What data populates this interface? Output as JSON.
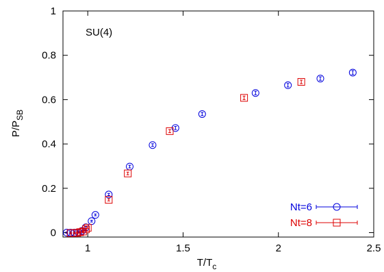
{
  "chart_data": {
    "type": "scatter",
    "title": "",
    "annotation": "SU(4)",
    "xlabel": {
      "main": "T/T",
      "sub": "c"
    },
    "ylabel": {
      "main": "P/P",
      "sub": "SB"
    },
    "xlim": [
      0.87,
      2.5
    ],
    "ylim": [
      -0.02,
      1.0
    ],
    "xticks": [
      1,
      1.5,
      2,
      2.5
    ],
    "xtick_labels": [
      "1",
      "1.5",
      "2",
      "2.5"
    ],
    "yticks": [
      0,
      0.2,
      0.4,
      0.6,
      0.8,
      1
    ],
    "ytick_labels": [
      "0",
      "0.2",
      "0.4",
      "0.6",
      "0.8",
      "1"
    ],
    "grid": false,
    "legend_position": "bottom-right",
    "series": [
      {
        "name": "Nt=6",
        "color": "#0000dd",
        "marker": "circle",
        "points": [
          {
            "x": 0.89,
            "y": 0.0,
            "err": 0.003
          },
          {
            "x": 0.91,
            "y": 0.0,
            "err": 0.003
          },
          {
            "x": 0.93,
            "y": 0.0,
            "err": 0.003
          },
          {
            "x": 0.95,
            "y": 0.002,
            "err": 0.003
          },
          {
            "x": 0.97,
            "y": 0.008,
            "err": 0.003
          },
          {
            "x": 0.99,
            "y": 0.024,
            "err": 0.004
          },
          {
            "x": 1.02,
            "y": 0.052,
            "err": 0.004
          },
          {
            "x": 1.04,
            "y": 0.08,
            "err": 0.004
          },
          {
            "x": 1.11,
            "y": 0.172,
            "err": 0.005
          },
          {
            "x": 1.22,
            "y": 0.298,
            "err": 0.006
          },
          {
            "x": 1.34,
            "y": 0.395,
            "err": 0.006
          },
          {
            "x": 1.46,
            "y": 0.472,
            "err": 0.007
          },
          {
            "x": 1.6,
            "y": 0.535,
            "err": 0.007
          },
          {
            "x": 1.88,
            "y": 0.63,
            "err": 0.008
          },
          {
            "x": 2.05,
            "y": 0.665,
            "err": 0.008
          },
          {
            "x": 2.22,
            "y": 0.695,
            "err": 0.008
          },
          {
            "x": 2.39,
            "y": 0.722,
            "err": 0.009
          }
        ]
      },
      {
        "name": "Nt=8",
        "color": "#dd0000",
        "marker": "square",
        "points": [
          {
            "x": 0.91,
            "y": -0.002,
            "err": 0.003
          },
          {
            "x": 0.93,
            "y": -0.002,
            "err": 0.003
          },
          {
            "x": 0.945,
            "y": -0.001,
            "err": 0.003
          },
          {
            "x": 0.96,
            "y": 0.002,
            "err": 0.003
          },
          {
            "x": 0.975,
            "y": 0.005,
            "err": 0.003
          },
          {
            "x": 0.99,
            "y": 0.015,
            "err": 0.004
          },
          {
            "x": 1.0,
            "y": 0.022,
            "err": 0.004
          },
          {
            "x": 1.11,
            "y": 0.148,
            "err": 0.005
          },
          {
            "x": 1.21,
            "y": 0.267,
            "err": 0.006
          },
          {
            "x": 1.43,
            "y": 0.458,
            "err": 0.007
          },
          {
            "x": 1.82,
            "y": 0.608,
            "err": 0.008
          },
          {
            "x": 2.12,
            "y": 0.68,
            "err": 0.008
          }
        ]
      }
    ]
  }
}
